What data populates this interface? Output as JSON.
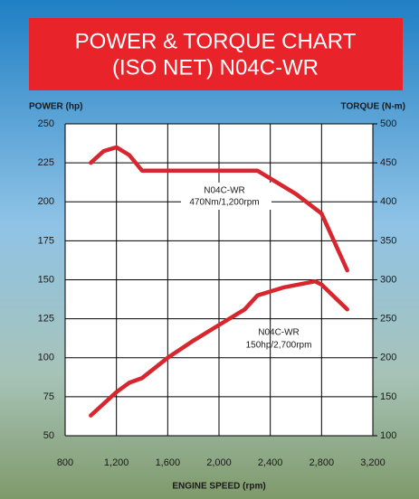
{
  "chart_data": {
    "type": "line",
    "title": "POWER & TORQUE CHART",
    "subtitle": "(ISO NET) N04C-WR",
    "y_label": "POWER (hp)",
    "y2_label": "TORQUE (N-m)",
    "x_label": "ENGINE SPEED (rpm)",
    "xlim": [
      800,
      3200
    ],
    "xticks": [
      800,
      {
        "value": 1200,
        "label": "1,200"
      },
      {
        "value": 1600,
        "label": "1,600"
      },
      {
        "value": 2000,
        "label": "2,000"
      },
      {
        "value": 2400,
        "label": "2,400"
      },
      {
        "value": 2800,
        "label": "2,800"
      },
      {
        "value": 3200,
        "label": "3,200"
      }
    ],
    "ylim": [
      50,
      250
    ],
    "yticks": [
      50,
      75,
      100,
      125,
      150,
      175,
      200,
      225,
      250
    ],
    "y2lim": [
      100,
      500
    ],
    "y2ticks": [
      100,
      150,
      200,
      250,
      300,
      350,
      400,
      450,
      500
    ],
    "grid": true,
    "series": [
      {
        "axis": "y2",
        "color": "#d7262e",
        "x": [
          1000,
          1100,
          1200,
          1300,
          1400,
          1600,
          2000,
          2300,
          2600,
          2800,
          3000
        ],
        "values": [
          450,
          465,
          470,
          460,
          440,
          440,
          440,
          440,
          410,
          385,
          312
        ]
      },
      {
        "axis": "y",
        "color": "#d7262e",
        "x": [
          1000,
          1200,
          1300,
          1400,
          1600,
          1800,
          2000,
          2200,
          2300,
          2500,
          2750,
          2800,
          3000
        ],
        "values": [
          63,
          78,
          84,
          87,
          100,
          111,
          121,
          131,
          140,
          145,
          149,
          147,
          131
        ]
      }
    ],
    "annotations": [
      {
        "name": "N04C-WR",
        "text": "470Nm/1,200rpm"
      },
      {
        "name": "N04C-WR",
        "text": "150hp/2,700rpm"
      }
    ]
  }
}
